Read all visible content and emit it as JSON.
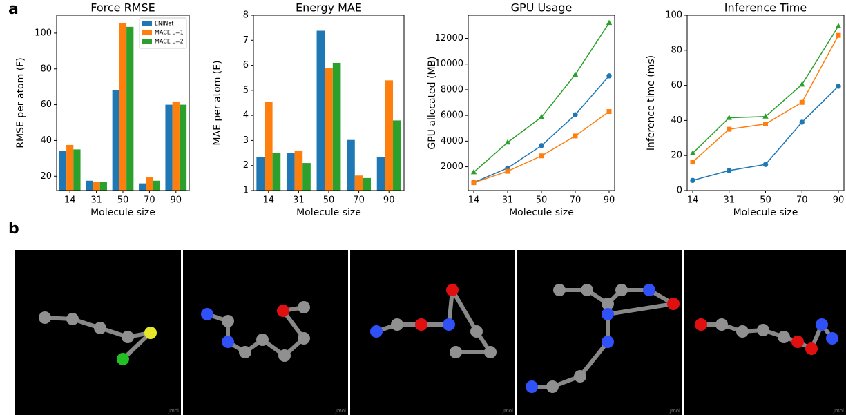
{
  "panel_labels": [
    "a",
    "b"
  ],
  "chart_data": [
    {
      "type": "bar",
      "title": "Force RMSE",
      "xlabel": "Molecule size",
      "ylabel": "RMSE per atom (F)",
      "categories": [
        "14",
        "31",
        "50",
        "70",
        "90"
      ],
      "series": [
        {
          "name": "ENINet",
          "color": "#1f77b4",
          "values": [
            34,
            17.5,
            68,
            16,
            60
          ]
        },
        {
          "name": "MACE L=1",
          "color": "#ff7f0e",
          "values": [
            37.5,
            17,
            105.5,
            19.7,
            61.8
          ]
        },
        {
          "name": "MACE L=2",
          "color": "#2ca02c",
          "values": [
            35,
            16.8,
            103.5,
            17.5,
            60
          ]
        }
      ],
      "ylim": [
        12,
        110
      ],
      "yticks": [
        20,
        40,
        60,
        80,
        100
      ],
      "legend": "upper right"
    },
    {
      "type": "bar",
      "title": "Energy MAE",
      "xlabel": "Molecule size",
      "ylabel": "MAE per atom (E)",
      "categories": [
        "14",
        "31",
        "50",
        "70",
        "90"
      ],
      "series": [
        {
          "color": "#1f77b4",
          "values": [
            2.35,
            2.5,
            7.38,
            3.02,
            2.35
          ]
        },
        {
          "color": "#ff7f0e",
          "values": [
            4.55,
            2.6,
            5.9,
            1.6,
            5.4
          ]
        },
        {
          "color": "#2ca02c",
          "values": [
            2.5,
            2.1,
            6.1,
            1.5,
            3.8
          ]
        }
      ],
      "ylim": [
        1,
        8
      ],
      "yticks": [
        1,
        2,
        3,
        4,
        5,
        6,
        7,
        8
      ]
    },
    {
      "type": "line",
      "title": "GPU Usage",
      "xlabel": "Molecule size",
      "ylabel": "GPU allocated (MB)",
      "categories": [
        "14",
        "31",
        "50",
        "70",
        "90"
      ],
      "series": [
        {
          "color": "#1f77b4",
          "marker": "circle",
          "values": [
            780,
            1900,
            3650,
            6050,
            9080
          ]
        },
        {
          "color": "#ff7f0e",
          "marker": "square",
          "values": [
            760,
            1650,
            2850,
            4400,
            6300
          ]
        },
        {
          "color": "#2ca02c",
          "marker": "triangle",
          "values": [
            1580,
            3900,
            5870,
            9180,
            13200
          ]
        }
      ],
      "ylim": [
        150,
        13800
      ],
      "yticks": [
        2000,
        4000,
        6000,
        8000,
        10000,
        12000
      ]
    },
    {
      "type": "line",
      "title": "Inference Time",
      "xlabel": "Molecule size",
      "ylabel": "Inference time (ms)",
      "categories": [
        "14",
        "31",
        "50",
        "70",
        "90"
      ],
      "series": [
        {
          "color": "#1f77b4",
          "marker": "circle",
          "values": [
            5.8,
            11.4,
            14.9,
            39,
            59.5
          ]
        },
        {
          "color": "#ff7f0e",
          "marker": "square",
          "values": [
            16.3,
            35,
            38,
            50.3,
            88.5
          ]
        },
        {
          "color": "#2ca02c",
          "marker": "triangle",
          "values": [
            21.3,
            41.5,
            42.2,
            60.5,
            93.8
          ]
        }
      ],
      "ylim": [
        0,
        100
      ],
      "yticks": [
        0,
        20,
        40,
        60,
        80,
        100
      ]
    }
  ],
  "images": [
    {
      "watermark": "Jmol"
    },
    {
      "watermark": "Jmol"
    },
    {
      "watermark": "Jmol"
    },
    {
      "watermark": "Jmol"
    },
    {
      "watermark": "Jmol"
    }
  ]
}
